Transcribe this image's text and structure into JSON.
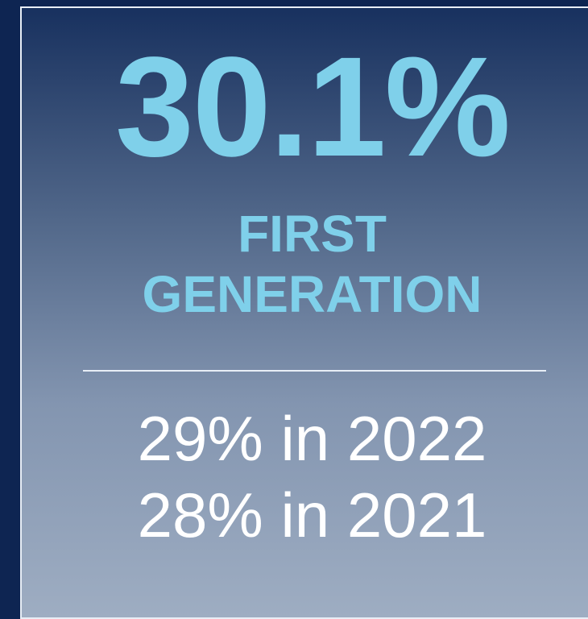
{
  "headline": "30.1%",
  "label_lines": [
    "FIRST",
    "GENERATION"
  ],
  "comparisons": [
    "29% in 2022",
    "28% in 2021"
  ]
}
